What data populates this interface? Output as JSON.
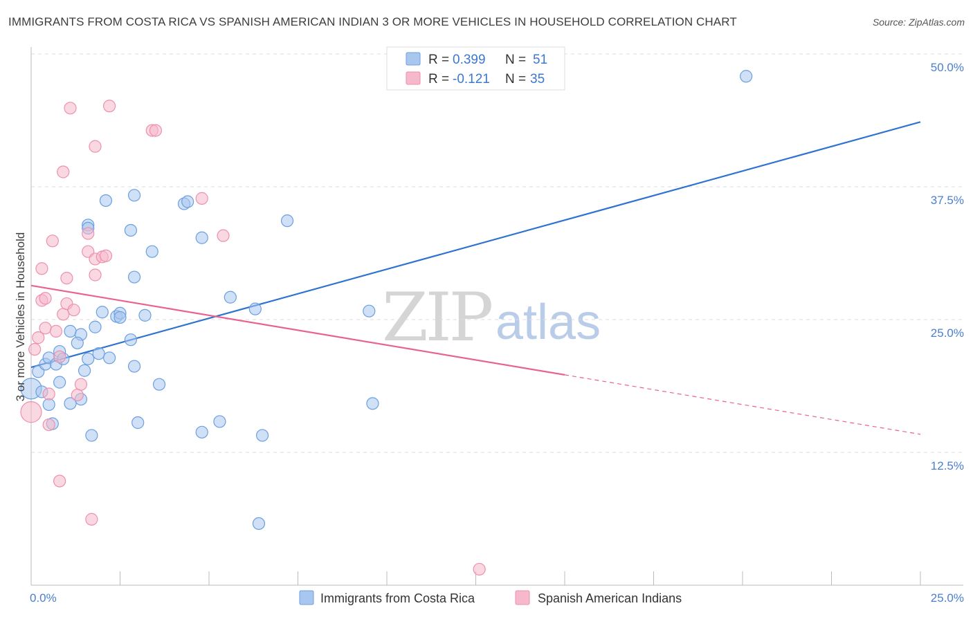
{
  "title": "IMMIGRANTS FROM COSTA RICA VS SPANISH AMERICAN INDIAN 3 OR MORE VEHICLES IN HOUSEHOLD CORRELATION CHART",
  "source": "Source: ZipAtlas.com",
  "watermark": {
    "zip": "ZIP",
    "atlas": "atlas"
  },
  "legend": {
    "rows": [
      {
        "r_label": "R =",
        "r_value": "0.399",
        "n_label": "N =",
        "n_value": "51"
      },
      {
        "r_label": "R =",
        "r_value": "-0.121",
        "n_label": "N =",
        "n_value": "35"
      }
    ]
  },
  "colors": {
    "blue_fill": "#a9c7ee",
    "blue_stroke": "#6a9fe0",
    "blue_line": "#2f72d0",
    "pink_fill": "#f6b8cb",
    "pink_stroke": "#ee8fae",
    "pink_line": "#e8638f",
    "grid": "#dcdcdc",
    "axis_text": "#4a7fd0"
  },
  "chart_data": {
    "type": "scatter",
    "title": "IMMIGRANTS FROM COSTA RICA VS SPANISH AMERICAN INDIAN 3 OR MORE VEHICLES IN HOUSEHOLD CORRELATION CHART",
    "xlabel": "",
    "ylabel": "3 or more Vehicles in Household",
    "xlim": [
      0,
      25
    ],
    "ylim": [
      0,
      50
    ],
    "x_tick_labels": [
      "0.0%",
      "25.0%"
    ],
    "y_ticks": [
      12.5,
      25.0,
      37.5,
      50.0
    ],
    "y_tick_labels": [
      "12.5%",
      "25.0%",
      "37.5%",
      "50.0%"
    ],
    "series": [
      {
        "name": "Immigrants from Costa Rica",
        "color": "#6a9fe0",
        "trend": {
          "x0": 0,
          "y0": 20.5,
          "x1": 25,
          "y1": 43.6,
          "solid_until": 25
        },
        "points": [
          [
            0.0,
            18.5
          ],
          [
            0.2,
            20.1
          ],
          [
            0.3,
            18.2
          ],
          [
            0.4,
            20.8
          ],
          [
            0.5,
            21.4
          ],
          [
            0.6,
            15.2
          ],
          [
            0.7,
            20.8
          ],
          [
            0.8,
            22.0
          ],
          [
            0.8,
            19.1
          ],
          [
            0.9,
            21.3
          ],
          [
            0.5,
            17.0
          ],
          [
            1.1,
            23.9
          ],
          [
            1.4,
            23.6
          ],
          [
            1.4,
            17.5
          ],
          [
            1.6,
            21.3
          ],
          [
            1.7,
            14.1
          ],
          [
            1.5,
            20.2
          ],
          [
            1.3,
            22.8
          ],
          [
            1.8,
            24.3
          ],
          [
            1.9,
            21.8
          ],
          [
            2.0,
            25.7
          ],
          [
            2.1,
            36.2
          ],
          [
            2.2,
            21.4
          ],
          [
            2.4,
            25.3
          ],
          [
            2.5,
            25.6
          ],
          [
            2.5,
            25.2
          ],
          [
            2.8,
            23.1
          ],
          [
            2.9,
            20.6
          ],
          [
            3.0,
            15.3
          ],
          [
            3.2,
            25.4
          ],
          [
            3.4,
            31.4
          ],
          [
            2.9,
            36.7
          ],
          [
            3.6,
            18.9
          ],
          [
            4.3,
            35.9
          ],
          [
            4.4,
            36.1
          ],
          [
            4.8,
            32.7
          ],
          [
            4.8,
            14.4
          ],
          [
            5.3,
            15.4
          ],
          [
            5.6,
            27.1
          ],
          [
            6.3,
            26.0
          ],
          [
            6.5,
            14.1
          ],
          [
            6.4,
            5.8
          ],
          [
            7.2,
            34.3
          ],
          [
            9.5,
            25.8
          ],
          [
            9.6,
            17.1
          ],
          [
            2.9,
            29.0
          ],
          [
            1.6,
            33.9
          ],
          [
            1.1,
            17.1
          ],
          [
            20.1,
            47.9
          ],
          [
            1.6,
            33.6
          ],
          [
            2.8,
            33.4
          ]
        ]
      },
      {
        "name": "Spanish American Indians",
        "color": "#ee8fae",
        "trend": {
          "x0": 0,
          "y0": 28.2,
          "x1": 25,
          "y1": 14.2,
          "solid_until": 15
        },
        "points": [
          [
            0.0,
            16.3
          ],
          [
            0.1,
            22.2
          ],
          [
            0.2,
            23.3
          ],
          [
            0.3,
            29.8
          ],
          [
            0.3,
            26.8
          ],
          [
            0.4,
            27.0
          ],
          [
            0.4,
            24.2
          ],
          [
            0.5,
            18.0
          ],
          [
            0.5,
            15.1
          ],
          [
            0.6,
            32.4
          ],
          [
            0.7,
            23.9
          ],
          [
            0.8,
            21.5
          ],
          [
            0.8,
            9.8
          ],
          [
            0.9,
            25.5
          ],
          [
            0.9,
            38.9
          ],
          [
            1.0,
            28.9
          ],
          [
            1.0,
            26.5
          ],
          [
            1.1,
            44.9
          ],
          [
            1.2,
            25.9
          ],
          [
            1.3,
            17.9
          ],
          [
            1.4,
            18.9
          ],
          [
            1.6,
            33.1
          ],
          [
            1.6,
            31.4
          ],
          [
            1.7,
            6.2
          ],
          [
            1.8,
            29.2
          ],
          [
            1.8,
            41.3
          ],
          [
            1.8,
            30.7
          ],
          [
            2.0,
            30.9
          ],
          [
            2.1,
            31.0
          ],
          [
            2.2,
            45.1
          ],
          [
            3.4,
            42.8
          ],
          [
            3.5,
            42.8
          ],
          [
            4.8,
            36.4
          ],
          [
            5.4,
            32.9
          ],
          [
            12.6,
            1.5
          ]
        ]
      }
    ]
  },
  "bottom_legend": [
    "Immigrants from Costa Rica",
    "Spanish American Indians"
  ]
}
